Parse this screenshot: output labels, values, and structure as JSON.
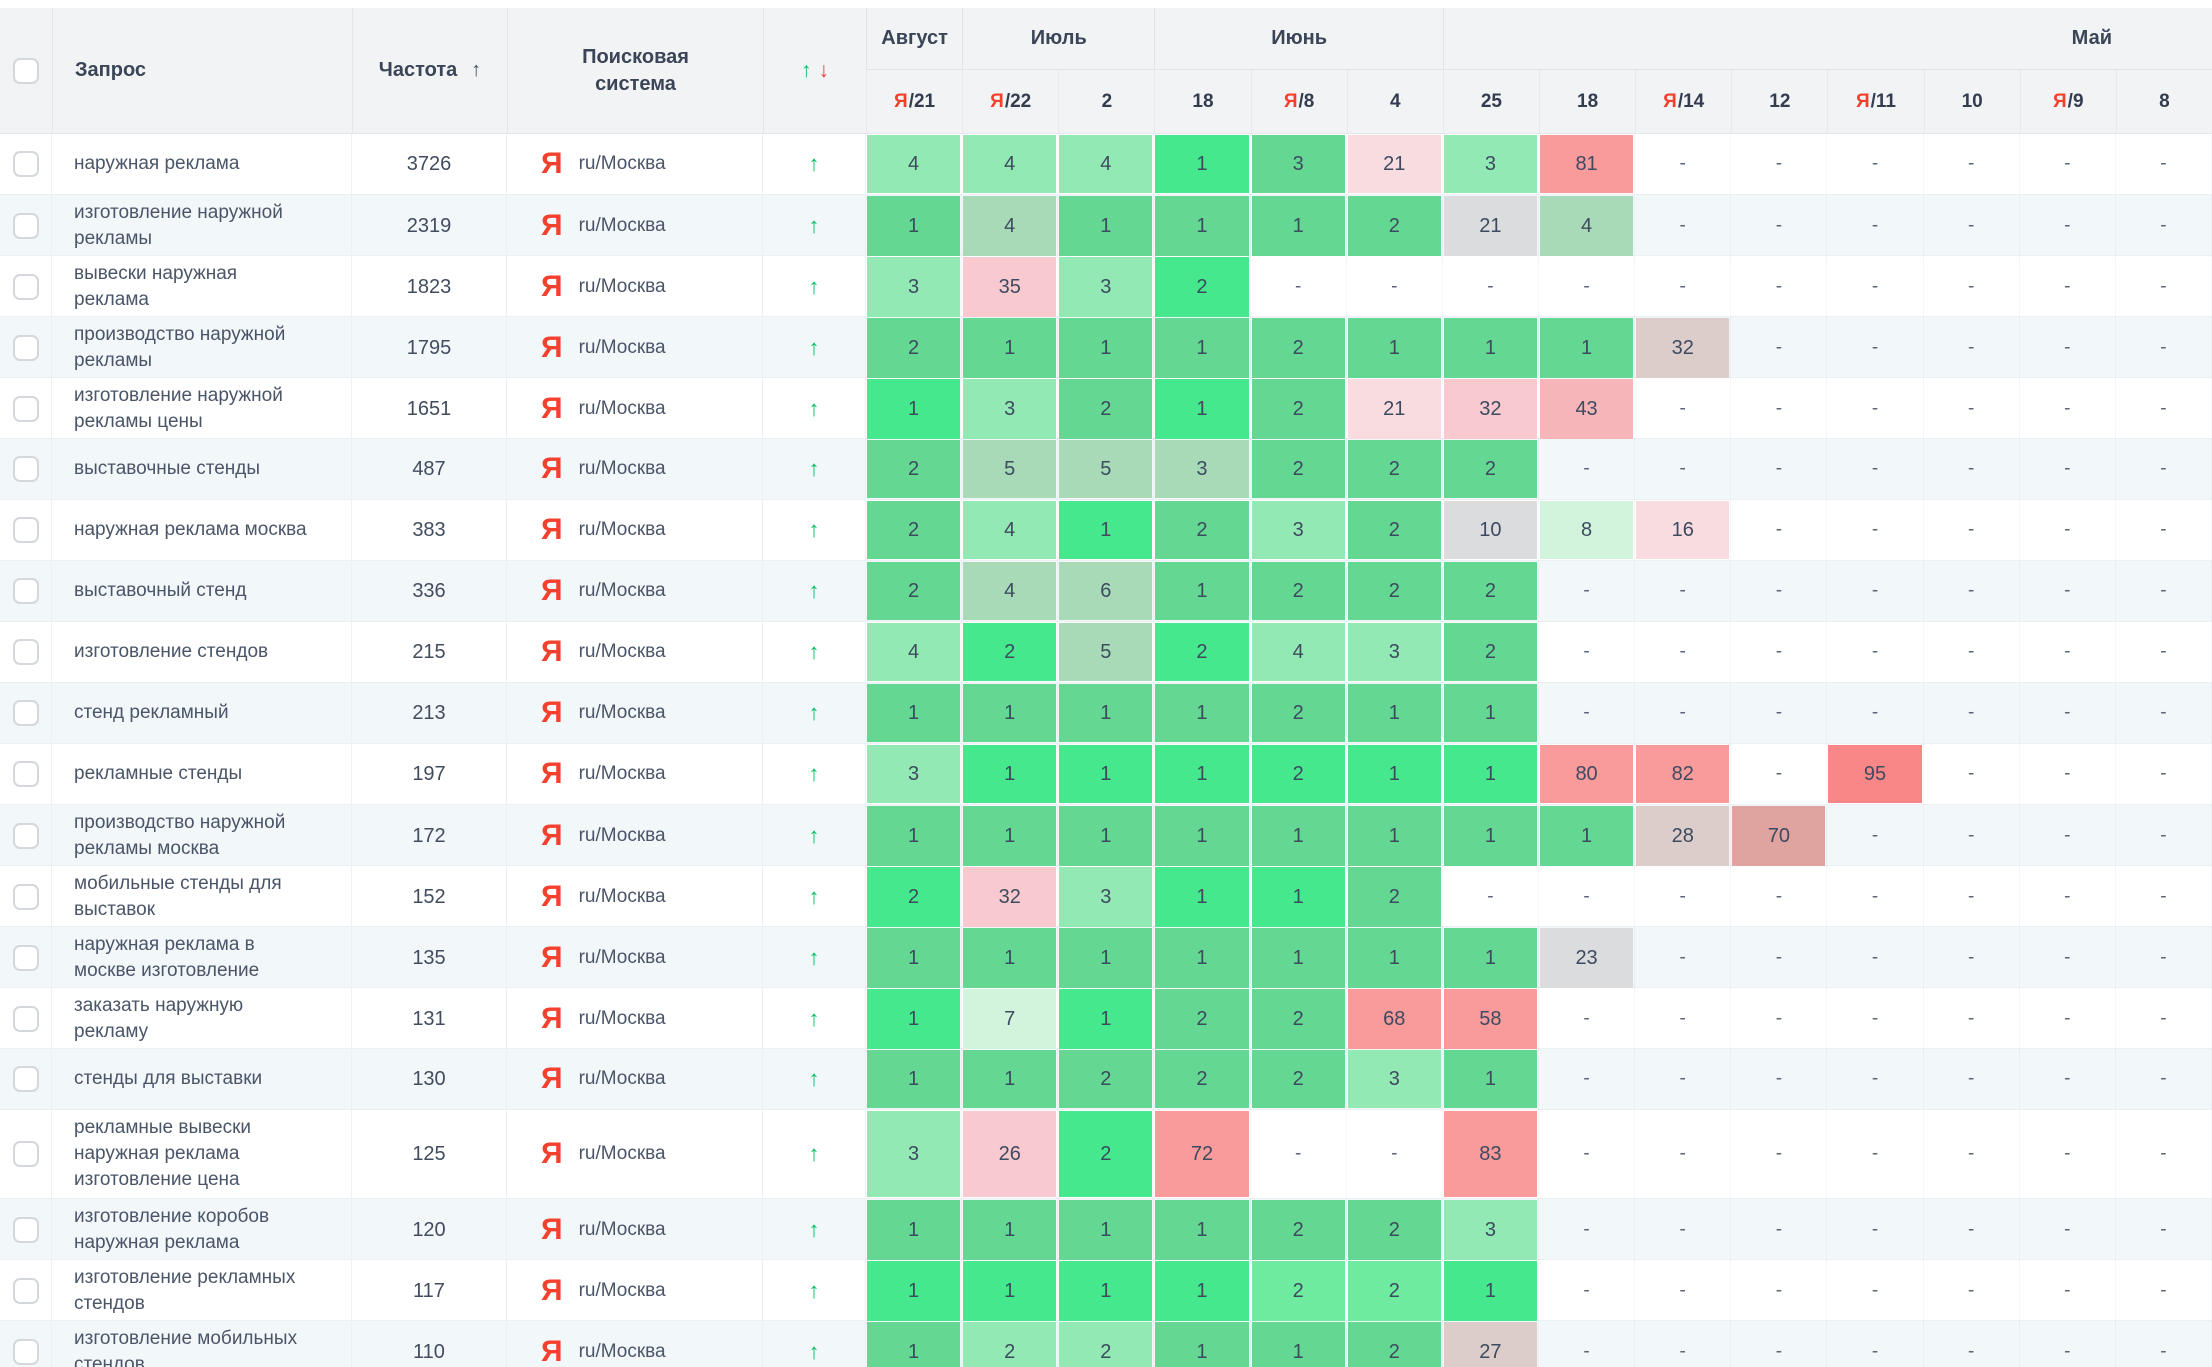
{
  "header": {
    "query_label": "Запрос",
    "frequency_label": "Частота",
    "sort_icon": "↑",
    "engine_label": "Поисковая система",
    "dyn_up": "↑",
    "dyn_down": "↓",
    "month_groups": [
      {
        "label": "Август",
        "span": 1
      },
      {
        "label": "Июль",
        "span": 2
      },
      {
        "label": "Июнь",
        "span": 3
      },
      {
        "label": "Май",
        "span": 8,
        "align": "right"
      }
    ],
    "date_columns": [
      {
        "ya": "Я",
        "day": "21"
      },
      {
        "ya": "Я",
        "day": "22"
      },
      {
        "day": "2"
      },
      {
        "day": "18"
      },
      {
        "ya": "Я",
        "day": "8"
      },
      {
        "day": "4"
      },
      {
        "day": "25"
      },
      {
        "day": "18"
      },
      {
        "ya": "Я",
        "day": "14"
      },
      {
        "day": "12"
      },
      {
        "ya": "Я",
        "day": "11"
      },
      {
        "day": "10"
      },
      {
        "ya": "Я",
        "day": "9"
      },
      {
        "day": "8"
      }
    ]
  },
  "engine": {
    "icon": "Я",
    "label": "ru/Москва"
  },
  "accent": {
    "up_green": "#0bbd63",
    "down_red": "#e83b3b",
    "yandex_red": "#f5402e",
    "alt_row": "#f2f7fa",
    "header_bg": "#f2f3f5"
  },
  "palette": {
    "g1": "#45e88d",
    "g1b": "#6eeb9e",
    "g2": "#64d793",
    "g3": "#92e9b3",
    "g4": "#d3f4dc",
    "gg": "#a9dab8",
    "gray": "#dbdcdd",
    "gpink": "#dccdca",
    "pinkL": "#f9dce0",
    "pink3": "#f8c9ce",
    "pink2": "#f6b6b9",
    "salmon": "#f99b9b",
    "red": "#f98787",
    "rose": "#dfa3a0"
  },
  "rows": [
    {
      "query": "наружная реклама",
      "frequency": "3726",
      "positions": [
        [
          "4",
          "g3"
        ],
        [
          "4",
          "g3"
        ],
        [
          "4",
          "g3"
        ],
        [
          "1",
          "g1"
        ],
        [
          "3",
          "g2"
        ],
        [
          "21",
          "pinkL"
        ],
        [
          "3",
          "g3"
        ],
        [
          "81",
          "salmon"
        ],
        [
          "-",
          ""
        ],
        [
          "-",
          ""
        ],
        [
          "-",
          ""
        ],
        [
          "-",
          ""
        ],
        [
          "-",
          ""
        ],
        [
          "-",
          ""
        ]
      ]
    },
    {
      "query": "изготовление наружной рекламы",
      "frequency": "2319",
      "positions": [
        [
          "1",
          "g2"
        ],
        [
          "4",
          "gg"
        ],
        [
          "1",
          "g2"
        ],
        [
          "1",
          "g2"
        ],
        [
          "1",
          "g2"
        ],
        [
          "2",
          "g2"
        ],
        [
          "21",
          "gray"
        ],
        [
          "4",
          "gg"
        ],
        [
          "-",
          ""
        ],
        [
          "-",
          ""
        ],
        [
          "-",
          ""
        ],
        [
          "-",
          ""
        ],
        [
          "-",
          ""
        ],
        [
          "-",
          ""
        ]
      ]
    },
    {
      "query": "вывески наружная реклама",
      "frequency": "1823",
      "positions": [
        [
          "3",
          "g3"
        ],
        [
          "35",
          "pink3"
        ],
        [
          "3",
          "g3"
        ],
        [
          "2",
          "g1"
        ],
        [
          "-",
          ""
        ],
        [
          "-",
          ""
        ],
        [
          "-",
          ""
        ],
        [
          "-",
          ""
        ],
        [
          "-",
          ""
        ],
        [
          "-",
          ""
        ],
        [
          "-",
          ""
        ],
        [
          "-",
          ""
        ],
        [
          "-",
          ""
        ],
        [
          "-",
          ""
        ]
      ]
    },
    {
      "query": "производство наружной рекламы",
      "frequency": "1795",
      "positions": [
        [
          "2",
          "g2"
        ],
        [
          "1",
          "g2"
        ],
        [
          "1",
          "g2"
        ],
        [
          "1",
          "g2"
        ],
        [
          "2",
          "g2"
        ],
        [
          "1",
          "g2"
        ],
        [
          "1",
          "g2"
        ],
        [
          "1",
          "g2"
        ],
        [
          "32",
          "gpink"
        ],
        [
          "-",
          ""
        ],
        [
          "-",
          ""
        ],
        [
          "-",
          ""
        ],
        [
          "-",
          ""
        ],
        [
          "-",
          ""
        ]
      ]
    },
    {
      "query": "изготовление наружной рекламы цены",
      "frequency": "1651",
      "positions": [
        [
          "1",
          "g1"
        ],
        [
          "3",
          "g3"
        ],
        [
          "2",
          "g2"
        ],
        [
          "1",
          "g1"
        ],
        [
          "2",
          "g2"
        ],
        [
          "21",
          "pinkL"
        ],
        [
          "32",
          "pink3"
        ],
        [
          "43",
          "pink2"
        ],
        [
          "-",
          ""
        ],
        [
          "-",
          ""
        ],
        [
          "-",
          ""
        ],
        [
          "-",
          ""
        ],
        [
          "-",
          ""
        ],
        [
          "-",
          ""
        ]
      ]
    },
    {
      "query": "выставочные стенды",
      "frequency": "487",
      "positions": [
        [
          "2",
          "g2"
        ],
        [
          "5",
          "gg"
        ],
        [
          "5",
          "gg"
        ],
        [
          "3",
          "gg"
        ],
        [
          "2",
          "g2"
        ],
        [
          "2",
          "g2"
        ],
        [
          "2",
          "g2"
        ],
        [
          "-",
          ""
        ],
        [
          "-",
          ""
        ],
        [
          "-",
          ""
        ],
        [
          "-",
          ""
        ],
        [
          "-",
          ""
        ],
        [
          "-",
          ""
        ],
        [
          "-",
          ""
        ]
      ]
    },
    {
      "query": "наружная реклама москва",
      "frequency": "383",
      "positions": [
        [
          "2",
          "g2"
        ],
        [
          "4",
          "g3"
        ],
        [
          "1",
          "g1"
        ],
        [
          "2",
          "g2"
        ],
        [
          "3",
          "g3"
        ],
        [
          "2",
          "g2"
        ],
        [
          "10",
          "gray"
        ],
        [
          "8",
          "g4"
        ],
        [
          "16",
          "pinkL"
        ],
        [
          "-",
          ""
        ],
        [
          "-",
          ""
        ],
        [
          "-",
          ""
        ],
        [
          "-",
          ""
        ],
        [
          "-",
          ""
        ]
      ]
    },
    {
      "query": "выставочный стенд",
      "frequency": "336",
      "positions": [
        [
          "2",
          "g2"
        ],
        [
          "4",
          "gg"
        ],
        [
          "6",
          "gg"
        ],
        [
          "1",
          "g2"
        ],
        [
          "2",
          "g2"
        ],
        [
          "2",
          "g2"
        ],
        [
          "2",
          "g2"
        ],
        [
          "-",
          ""
        ],
        [
          "-",
          ""
        ],
        [
          "-",
          ""
        ],
        [
          "-",
          ""
        ],
        [
          "-",
          ""
        ],
        [
          "-",
          ""
        ],
        [
          "-",
          ""
        ]
      ]
    },
    {
      "query": "изготовление стендов",
      "frequency": "215",
      "positions": [
        [
          "4",
          "g3"
        ],
        [
          "2",
          "g1"
        ],
        [
          "5",
          "gg"
        ],
        [
          "2",
          "g1"
        ],
        [
          "4",
          "g3"
        ],
        [
          "3",
          "g3"
        ],
        [
          "2",
          "g2"
        ],
        [
          "-",
          ""
        ],
        [
          "-",
          ""
        ],
        [
          "-",
          ""
        ],
        [
          "-",
          ""
        ],
        [
          "-",
          ""
        ],
        [
          "-",
          ""
        ],
        [
          "-",
          ""
        ]
      ]
    },
    {
      "query": "стенд рекламный",
      "frequency": "213",
      "positions": [
        [
          "1",
          "g2"
        ],
        [
          "1",
          "g2"
        ],
        [
          "1",
          "g2"
        ],
        [
          "1",
          "g2"
        ],
        [
          "2",
          "g2"
        ],
        [
          "1",
          "g2"
        ],
        [
          "1",
          "g2"
        ],
        [
          "-",
          ""
        ],
        [
          "-",
          ""
        ],
        [
          "-",
          ""
        ],
        [
          "-",
          ""
        ],
        [
          "-",
          ""
        ],
        [
          "-",
          ""
        ],
        [
          "-",
          ""
        ]
      ]
    },
    {
      "query": "рекламные стенды",
      "frequency": "197",
      "positions": [
        [
          "3",
          "g3"
        ],
        [
          "1",
          "g1"
        ],
        [
          "1",
          "g1"
        ],
        [
          "1",
          "g1"
        ],
        [
          "2",
          "g1"
        ],
        [
          "1",
          "g1"
        ],
        [
          "1",
          "g1"
        ],
        [
          "80",
          "salmon"
        ],
        [
          "82",
          "salmon"
        ],
        [
          "-",
          ""
        ],
        [
          "95",
          "red"
        ],
        [
          "-",
          ""
        ],
        [
          "-",
          ""
        ],
        [
          "-",
          ""
        ]
      ]
    },
    {
      "query": "производство наружной рекламы москва",
      "frequency": "172",
      "positions": [
        [
          "1",
          "g2"
        ],
        [
          "1",
          "g2"
        ],
        [
          "1",
          "g2"
        ],
        [
          "1",
          "g2"
        ],
        [
          "1",
          "g2"
        ],
        [
          "1",
          "g2"
        ],
        [
          "1",
          "g2"
        ],
        [
          "1",
          "g2"
        ],
        [
          "28",
          "gpink"
        ],
        [
          "70",
          "rose"
        ],
        [
          "-",
          ""
        ],
        [
          "-",
          ""
        ],
        [
          "-",
          ""
        ],
        [
          "-",
          ""
        ]
      ]
    },
    {
      "query": "мобильные стенды для выставок",
      "frequency": "152",
      "positions": [
        [
          "2",
          "g1"
        ],
        [
          "32",
          "pink3"
        ],
        [
          "3",
          "g3"
        ],
        [
          "1",
          "g1"
        ],
        [
          "1",
          "g1"
        ],
        [
          "2",
          "g2"
        ],
        [
          "-",
          ""
        ],
        [
          "-",
          ""
        ],
        [
          "-",
          ""
        ],
        [
          "-",
          ""
        ],
        [
          "-",
          ""
        ],
        [
          "-",
          ""
        ],
        [
          "-",
          ""
        ],
        [
          "-",
          ""
        ]
      ]
    },
    {
      "query": "наружная реклама в москве изготовление",
      "frequency": "135",
      "positions": [
        [
          "1",
          "g2"
        ],
        [
          "1",
          "g2"
        ],
        [
          "1",
          "g2"
        ],
        [
          "1",
          "g2"
        ],
        [
          "1",
          "g2"
        ],
        [
          "1",
          "g2"
        ],
        [
          "1",
          "g2"
        ],
        [
          "23",
          "gray"
        ],
        [
          "-",
          ""
        ],
        [
          "-",
          ""
        ],
        [
          "-",
          ""
        ],
        [
          "-",
          ""
        ],
        [
          "-",
          ""
        ],
        [
          "-",
          ""
        ]
      ]
    },
    {
      "query": "заказать наружную рекламу",
      "frequency": "131",
      "positions": [
        [
          "1",
          "g1"
        ],
        [
          "7",
          "g4"
        ],
        [
          "1",
          "g1"
        ],
        [
          "2",
          "g2"
        ],
        [
          "2",
          "g2"
        ],
        [
          "68",
          "salmon"
        ],
        [
          "58",
          "salmon"
        ],
        [
          "-",
          ""
        ],
        [
          "-",
          ""
        ],
        [
          "-",
          ""
        ],
        [
          "-",
          ""
        ],
        [
          "-",
          ""
        ],
        [
          "-",
          ""
        ],
        [
          "-",
          ""
        ]
      ]
    },
    {
      "query": "стенды для выставки",
      "frequency": "130",
      "positions": [
        [
          "1",
          "g2"
        ],
        [
          "1",
          "g2"
        ],
        [
          "2",
          "g2"
        ],
        [
          "2",
          "g2"
        ],
        [
          "2",
          "g2"
        ],
        [
          "3",
          "g3"
        ],
        [
          "1",
          "g2"
        ],
        [
          "-",
          ""
        ],
        [
          "-",
          ""
        ],
        [
          "-",
          ""
        ],
        [
          "-",
          ""
        ],
        [
          "-",
          ""
        ],
        [
          "-",
          ""
        ],
        [
          "-",
          ""
        ]
      ]
    },
    {
      "query": "рекламные вывески наружная реклама изготовление цена",
      "frequency": "125",
      "tall": true,
      "positions": [
        [
          "3",
          "g3"
        ],
        [
          "26",
          "pink3"
        ],
        [
          "2",
          "g1"
        ],
        [
          "72",
          "salmon"
        ],
        [
          "-",
          ""
        ],
        [
          "-",
          ""
        ],
        [
          "83",
          "salmon"
        ],
        [
          "-",
          ""
        ],
        [
          "-",
          ""
        ],
        [
          "-",
          ""
        ],
        [
          "-",
          ""
        ],
        [
          "-",
          ""
        ],
        [
          "-",
          ""
        ],
        [
          "-",
          ""
        ]
      ]
    },
    {
      "query": "изготовление коробов наружная реклама",
      "frequency": "120",
      "positions": [
        [
          "1",
          "g2"
        ],
        [
          "1",
          "g2"
        ],
        [
          "1",
          "g2"
        ],
        [
          "1",
          "g2"
        ],
        [
          "2",
          "g2"
        ],
        [
          "2",
          "g2"
        ],
        [
          "3",
          "g3"
        ],
        [
          "-",
          ""
        ],
        [
          "-",
          ""
        ],
        [
          "-",
          ""
        ],
        [
          "-",
          ""
        ],
        [
          "-",
          ""
        ],
        [
          "-",
          ""
        ],
        [
          "-",
          ""
        ]
      ]
    },
    {
      "query": "изготовление рекламных стендов",
      "frequency": "117",
      "positions": [
        [
          "1",
          "g1"
        ],
        [
          "1",
          "g1"
        ],
        [
          "1",
          "g1"
        ],
        [
          "1",
          "g1"
        ],
        [
          "2",
          "g1b"
        ],
        [
          "2",
          "g1b"
        ],
        [
          "1",
          "g1"
        ],
        [
          "-",
          ""
        ],
        [
          "-",
          ""
        ],
        [
          "-",
          ""
        ],
        [
          "-",
          ""
        ],
        [
          "-",
          ""
        ],
        [
          "-",
          ""
        ],
        [
          "-",
          ""
        ]
      ]
    },
    {
      "query": "изготовление мобильных стендов",
      "frequency": "110",
      "positions": [
        [
          "1",
          "g2"
        ],
        [
          "2",
          "g3"
        ],
        [
          "2",
          "g3"
        ],
        [
          "1",
          "g2"
        ],
        [
          "1",
          "g2"
        ],
        [
          "2",
          "g2"
        ],
        [
          "27",
          "gpink"
        ],
        [
          "-",
          ""
        ],
        [
          "-",
          ""
        ],
        [
          "-",
          ""
        ],
        [
          "-",
          ""
        ],
        [
          "-",
          ""
        ],
        [
          "-",
          ""
        ],
        [
          "-",
          ""
        ]
      ]
    }
  ]
}
